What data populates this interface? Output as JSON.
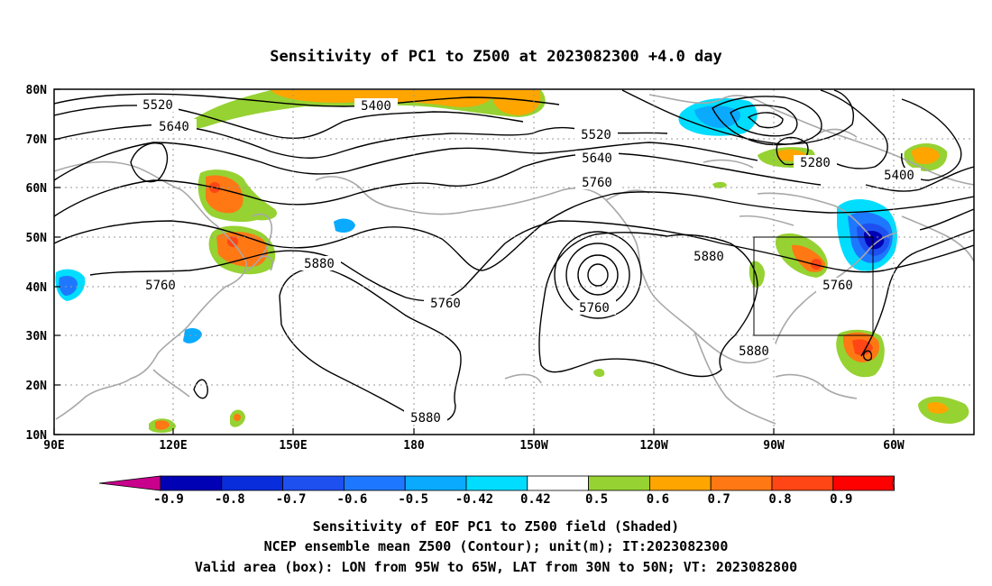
{
  "title": "Sensitivity of PC1 to Z500 at 2023082300 +4.0 day",
  "lon_ticks": [
    "90E",
    "120E",
    "150E",
    "180",
    "150W",
    "120W",
    "90W",
    "60W"
  ],
  "lat_ticks": [
    "80N",
    "70N",
    "60N",
    "50N",
    "40N",
    "30N",
    "20N",
    "10N"
  ],
  "contour_labels": [
    "5520",
    "5640",
    "5400",
    "5520",
    "5640",
    "5760",
    "5280",
    "5400",
    "5880",
    "5760",
    "5760",
    "5880",
    "5880",
    "5760",
    "5760",
    "5880"
  ],
  "colorbar": {
    "labels": [
      "-0.9",
      "-0.8",
      "-0.7",
      "-0.6",
      "-0.5",
      "-0.42",
      "0.42",
      "0.5",
      "0.6",
      "0.7",
      "0.8",
      "0.9"
    ],
    "colors": [
      "#c8008c",
      "#0000b4",
      "#0a2ddc",
      "#1e50f0",
      "#1e78ff",
      "#0aaaff",
      "#00ddff",
      "#ffffff",
      "#96d232",
      "#ffa500",
      "#ff7814",
      "#ff4614",
      "#ff0000",
      "#ff96c8"
    ]
  },
  "footer": [
    "Sensitivity of EOF PC1 to Z500 field (Shaded)",
    "NCEP ensemble mean Z500 (Contour); unit(m); IT:2023082300",
    "Valid area (box): LON from 95W to 65W, LAT from 30N to 50N; VT: 2023082800"
  ]
}
